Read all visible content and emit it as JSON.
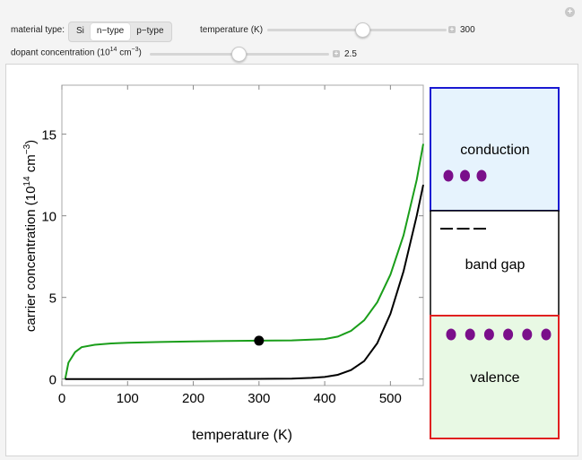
{
  "controls": {
    "material_type_label": "material type:",
    "material_options": [
      "Si",
      "n−type",
      "p−type"
    ],
    "selected_material": "n−type",
    "temperature_label": "temperature (K)",
    "temperature_value": "300",
    "temperature_fraction": 0.5,
    "dopant_label_pre": "dopant concentration (10",
    "dopant_label_sup": "14",
    "dopant_label_mid": " cm",
    "dopant_label_sup2": "−3",
    "dopant_label_post": ")",
    "dopant_value": "2.5",
    "dopant_fraction": 0.25,
    "add_icon": "plus-icon"
  },
  "chart_data": {
    "type": "line",
    "xlabel": "temperature (K)",
    "ylabel_pre": "carrier  concentration  (10",
    "ylabel_sup": "14",
    "ylabel_mid": " cm",
    "ylabel_sup2": "−3",
    "ylabel_post": ")",
    "xlim": [
      0,
      550
    ],
    "ylim": [
      -0.4,
      18
    ],
    "xticks": [
      0,
      100,
      200,
      300,
      400,
      500
    ],
    "yticks": [
      0,
      5,
      10,
      15
    ],
    "series": [
      {
        "color": "#1a9e1a",
        "x": [
          5,
          10,
          20,
          30,
          50,
          75,
          100,
          150,
          200,
          250,
          300,
          350,
          400,
          420,
          440,
          460,
          480,
          500,
          520,
          540,
          550
        ],
        "y": [
          0,
          1.0,
          1.65,
          1.95,
          2.1,
          2.18,
          2.22,
          2.27,
          2.3,
          2.33,
          2.35,
          2.37,
          2.45,
          2.6,
          2.95,
          3.6,
          4.7,
          6.4,
          8.8,
          12.2,
          14.4
        ]
      },
      {
        "color": "#000000",
        "x": [
          5,
          100,
          200,
          300,
          350,
          380,
          400,
          420,
          440,
          460,
          480,
          500,
          520,
          540,
          550
        ],
        "y": [
          0,
          0,
          0,
          0.01,
          0.03,
          0.07,
          0.13,
          0.26,
          0.55,
          1.1,
          2.2,
          4.0,
          6.6,
          10.0,
          11.9
        ]
      }
    ],
    "marker": {
      "x": 300,
      "y": 2.35,
      "color": "#000000"
    }
  },
  "band_diagram": {
    "conduction_label": "conduction",
    "gap_label": "band gap",
    "valence_label": "valence",
    "conduction_fill": "#e6f3fd",
    "conduction_border": "#1a1ad2",
    "valence_fill": "#e8f9e4",
    "valence_border": "#e02020",
    "electron_color": "#7a0f8a",
    "electron_count": 3,
    "hole_count": 6,
    "donor_level_count": 3
  }
}
